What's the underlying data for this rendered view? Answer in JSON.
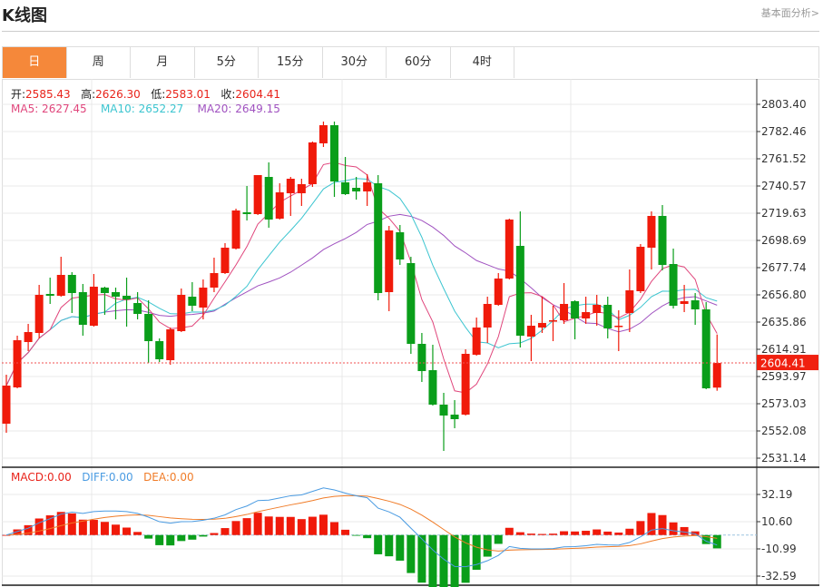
{
  "header": {
    "title": "K线图",
    "link": "基本面分析>"
  },
  "tabs": [
    {
      "label": "日",
      "active": true
    },
    {
      "label": "周"
    },
    {
      "label": "月"
    },
    {
      "label": "5分"
    },
    {
      "label": "15分"
    },
    {
      "label": "30分"
    },
    {
      "label": "60分"
    },
    {
      "label": "4时"
    }
  ],
  "info": {
    "open_label": "开:",
    "open": "2585.43",
    "high_label": "高:",
    "high": "2626.30",
    "low_label": "低:",
    "low": "2583.01",
    "close_label": "收:",
    "close": "2604.41",
    "ma5": "MA5: 2627.45",
    "ma10": "MA10: 2652.27",
    "ma20": "MA20: 2649.15"
  },
  "macd_legend": {
    "macd": "MACD:0.00",
    "diff": "DIFF:0.00",
    "dea": "DEA:0.00"
  },
  "colors": {
    "up": "#f01a0a",
    "down": "#0a9e1a",
    "ma5": "#e0467c",
    "ma10": "#3cc5d0",
    "ma20": "#a052c0",
    "diff": "#4a9be2",
    "dea": "#f07c28",
    "accent": "#f5883a"
  },
  "chart_data": {
    "type": "candlestick",
    "price_axis": {
      "ticks": [
        "2803.40",
        "2782.46",
        "2761.52",
        "2740.57",
        "2719.63",
        "2698.69",
        "2677.74",
        "2656.80",
        "2635.86",
        "2614.91",
        "2593.97",
        "2573.03",
        "2552.08",
        "2531.14"
      ],
      "range": [
        2531.14,
        2803.4
      ]
    },
    "last_price": "2604.41",
    "macd_axis": {
      "ticks": [
        "32.19",
        "10.60",
        "-10.99",
        "-32.59"
      ],
      "range": [
        -32.59,
        32.19
      ]
    },
    "indicators": [
      "MA5",
      "MA10",
      "MA20",
      "MACD",
      "DIFF",
      "DEA"
    ],
    "grid": true,
    "ohlc": [
      [
        2557.67,
        2595.36,
        2550.69,
        2586.99
      ],
      [
        2585.59,
        2625.38,
        2584.89,
        2621.89
      ],
      [
        2620.5,
        2634.46,
        2613.52,
        2628.18
      ],
      [
        2627.48,
        2664.48,
        2623.29,
        2656.8
      ],
      [
        2657.5,
        2670.06,
        2649.82,
        2656.1
      ],
      [
        2656.1,
        2686.12,
        2655.4,
        2672.16
      ],
      [
        2672.16,
        2674.25,
        2642.84,
        2658.19
      ],
      [
        2658.89,
        2665.17,
        2625.38,
        2633.76
      ],
      [
        2633.06,
        2672.85,
        2632.36,
        2663.08
      ],
      [
        2662.38,
        2663.08,
        2641.44,
        2658.19
      ],
      [
        2658.89,
        2662.38,
        2637.95,
        2655.4
      ],
      [
        2656.1,
        2670.06,
        2632.36,
        2653.31
      ],
      [
        2650.51,
        2658.89,
        2637.95,
        2642.14
      ],
      [
        2642.14,
        2652.61,
        2604.44,
        2621.19
      ],
      [
        2621.19,
        2623.29,
        2605.14,
        2607.23
      ],
      [
        2606.53,
        2631.67,
        2603.04,
        2630.27
      ],
      [
        2628.87,
        2661.68,
        2628.18,
        2656.8
      ],
      [
        2655.4,
        2666.57,
        2644.23,
        2648.42
      ],
      [
        2647.02,
        2668.67,
        2637.95,
        2662.38
      ],
      [
        2662.38,
        2685.42,
        2658.89,
        2673.55
      ],
      [
        2673.55,
        2696.59,
        2672.85,
        2693.1
      ],
      [
        2692.4,
        2723.12,
        2691.7,
        2721.72
      ],
      [
        2720.32,
        2740.57,
        2714.04,
        2718.93
      ],
      [
        2718.93,
        2748.95,
        2718.23,
        2748.95
      ],
      [
        2747.55,
        2758.72,
        2708.46,
        2714.74
      ],
      [
        2715.44,
        2742.66,
        2714.74,
        2735.68
      ],
      [
        2734.98,
        2747.55,
        2717.53,
        2746.15
      ],
      [
        2734.98,
        2746.15,
        2725.21,
        2741.97
      ],
      [
        2741.97,
        2774.78,
        2739.87,
        2774.08
      ],
      [
        2773.38,
        2790.13,
        2770.59,
        2787.34
      ],
      [
        2787.34,
        2790.13,
        2732.19,
        2744.06
      ],
      [
        2743.36,
        2762.91,
        2733.59,
        2734.29
      ],
      [
        2739.17,
        2747.55,
        2730.1,
        2736.38
      ],
      [
        2736.38,
        2749.64,
        2725.21,
        2743.36
      ],
      [
        2742.66,
        2748.95,
        2652.61,
        2658.19
      ],
      [
        2658.89,
        2709.85,
        2644.23,
        2706.36
      ],
      [
        2704.97,
        2710.55,
        2679.83,
        2684.02
      ],
      [
        2681.23,
        2686.12,
        2611.42,
        2619.1
      ],
      [
        2619.1,
        2627.48,
        2589.78,
        2598.16
      ],
      [
        2598.86,
        2618.4,
        2571.6,
        2572.33
      ],
      [
        2572.33,
        2581.4,
        2536.72,
        2563.95
      ],
      [
        2564.65,
        2575.82,
        2554.18,
        2561.16
      ],
      [
        2564.65,
        2614.91,
        2563.95,
        2611.42
      ],
      [
        2610.72,
        2639.34,
        2610.02,
        2631.67
      ],
      [
        2631.67,
        2655.4,
        2619.8,
        2649.82
      ],
      [
        2649.12,
        2673.55,
        2648.42,
        2669.36
      ],
      [
        2669.36,
        2715.44,
        2668.67,
        2714.74
      ],
      [
        2694.49,
        2721.02,
        2616.31,
        2625.38
      ],
      [
        2624.68,
        2641.44,
        2605.84,
        2633.06
      ],
      [
        2631.67,
        2655.4,
        2627.48,
        2635.16
      ],
      [
        2636.55,
        2648.42,
        2621.19,
        2637.25
      ],
      [
        2637.25,
        2665.87,
        2634.46,
        2649.82
      ],
      [
        2651.91,
        2652.61,
        2622.59,
        2638.65
      ],
      [
        2638.65,
        2655.4,
        2634.46,
        2643.53
      ],
      [
        2642.84,
        2656.8,
        2633.06,
        2649.12
      ],
      [
        2649.12,
        2655.4,
        2623.29,
        2630.97
      ],
      [
        2632.36,
        2644.93,
        2613.52,
        2633.06
      ],
      [
        2642.84,
        2676.34,
        2628.18,
        2660.29
      ],
      [
        2659.59,
        2695.89,
        2658.19,
        2693.8
      ],
      [
        2693.1,
        2721.02,
        2676.34,
        2717.53
      ],
      [
        2717.53,
        2725.91,
        2675.65,
        2679.83
      ],
      [
        2680.53,
        2692.4,
        2646.33,
        2648.42
      ],
      [
        2649.82,
        2664.48,
        2643.53,
        2651.91
      ],
      [
        2652.61,
        2658.19,
        2633.76,
        2645.63
      ],
      [
        2645.63,
        2651.21,
        2584.2,
        2584.89
      ],
      [
        2585.43,
        2626.3,
        2583.01,
        2604.41
      ]
    ]
  }
}
